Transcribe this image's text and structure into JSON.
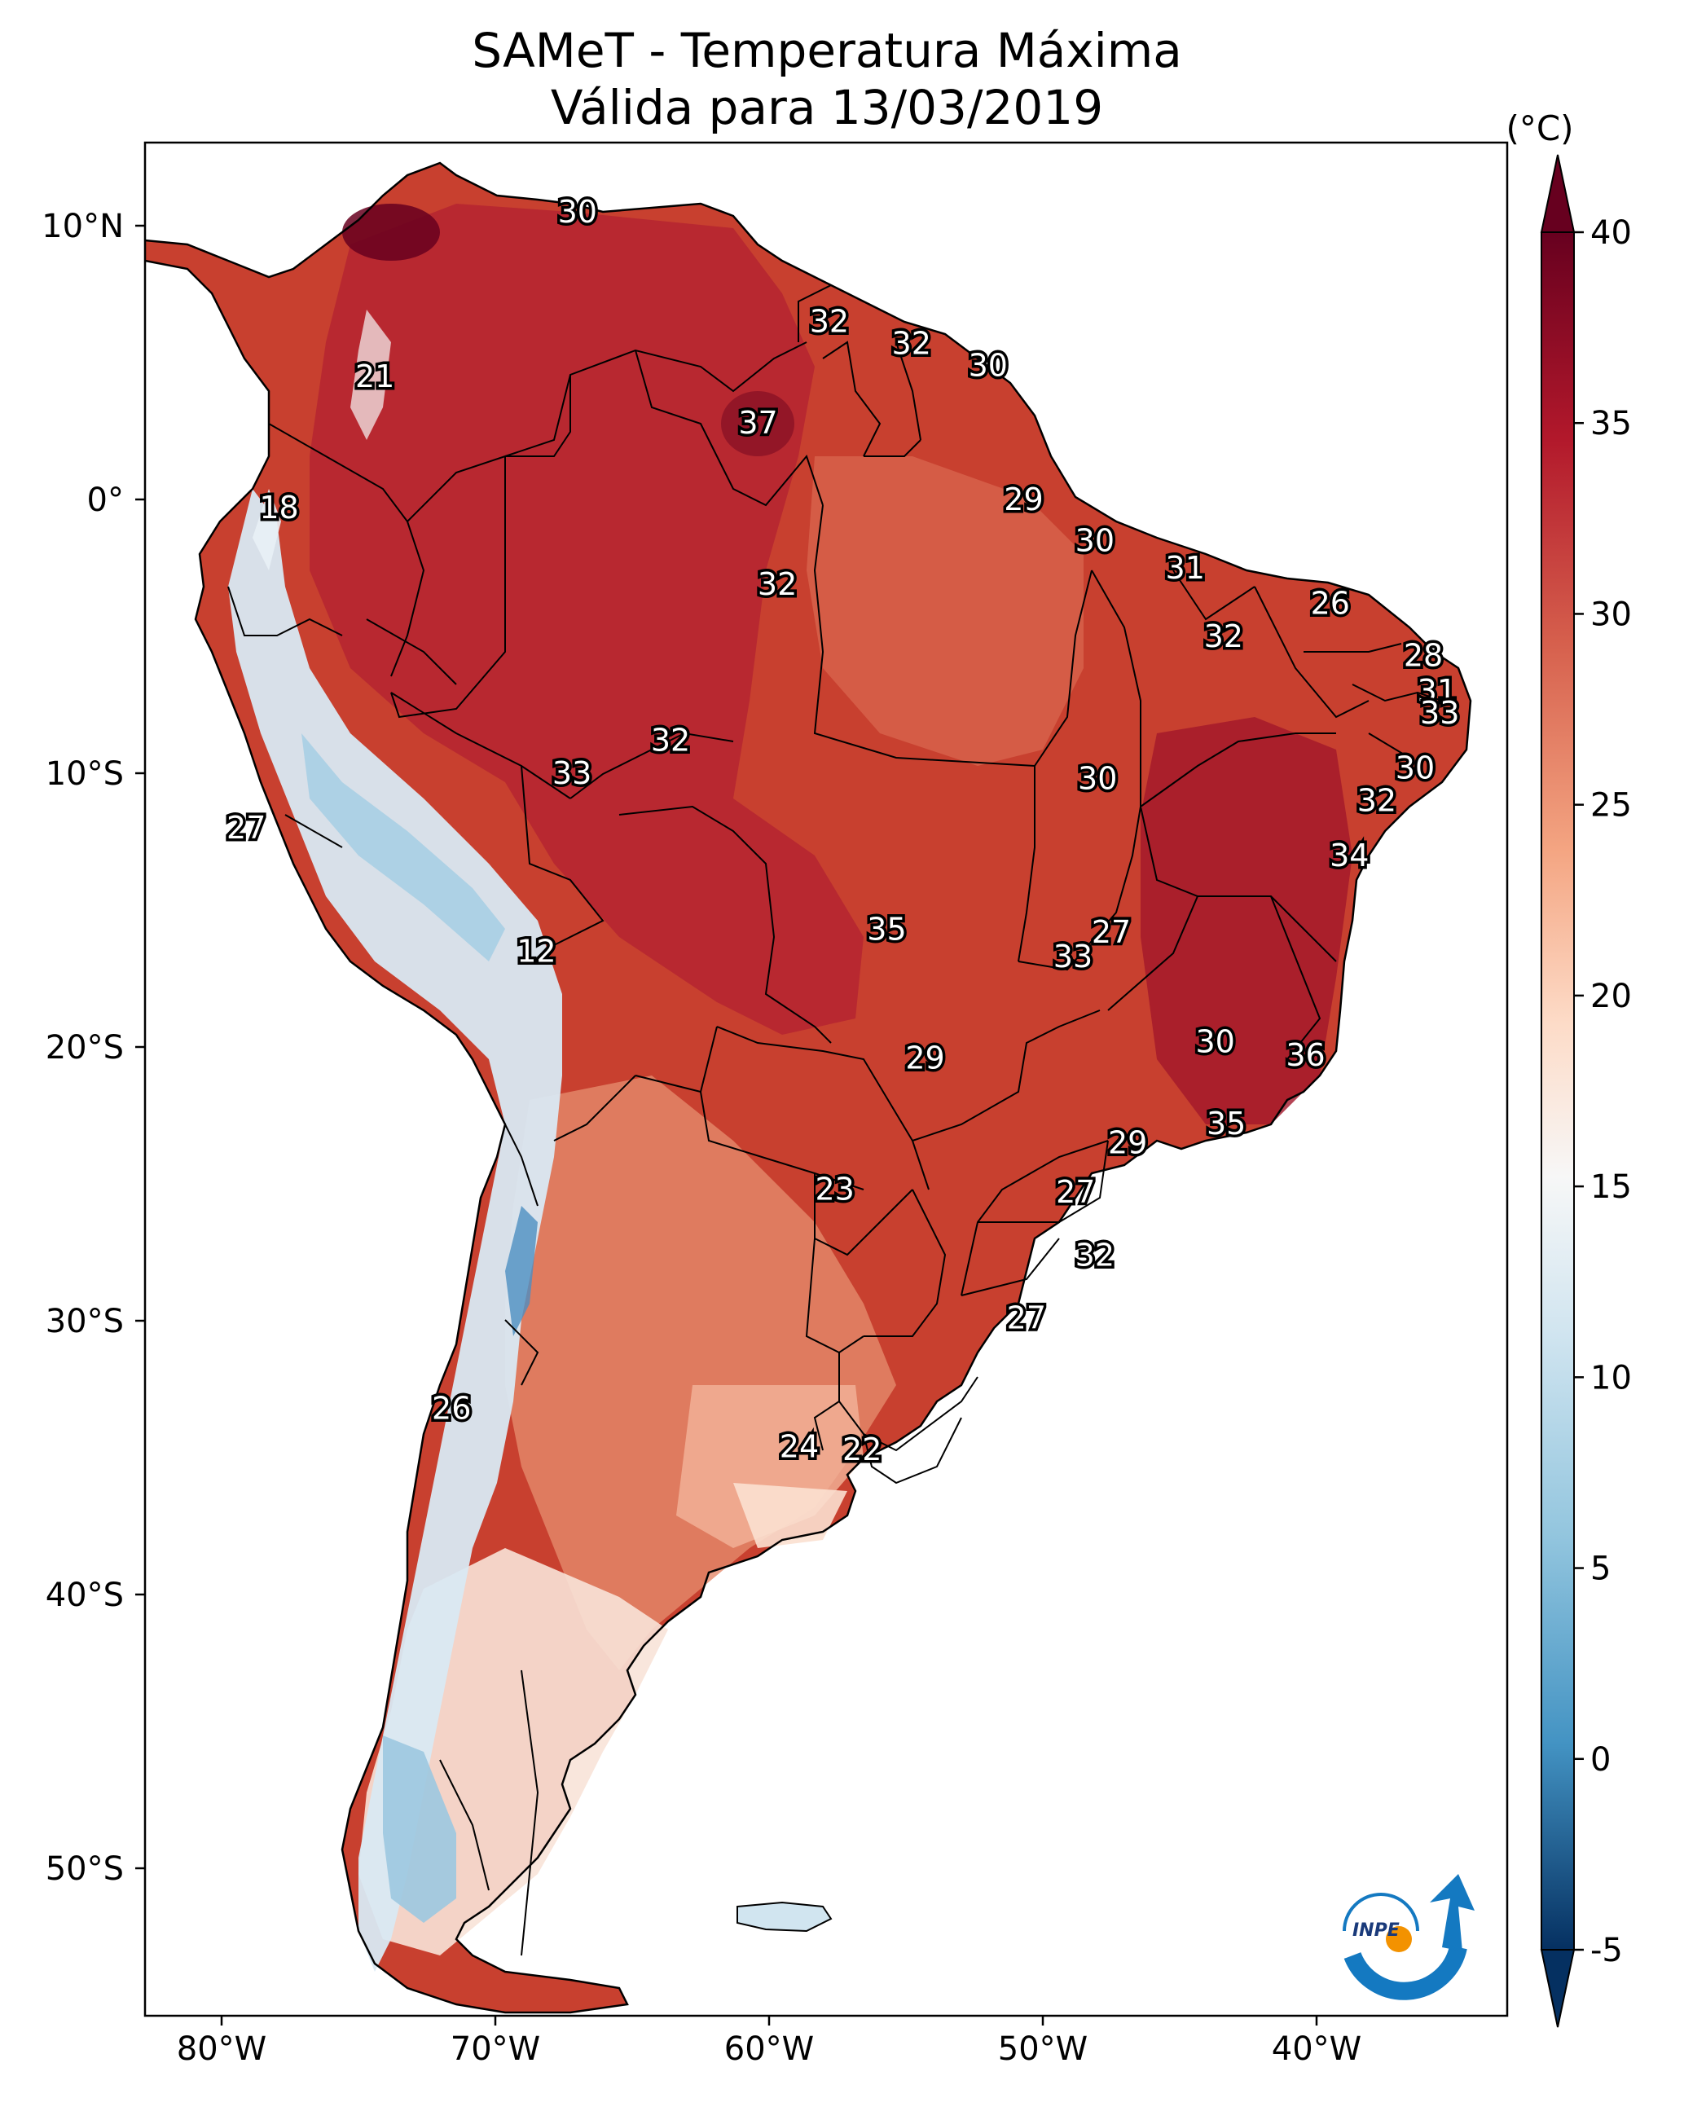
{
  "title": {
    "line1": "SAMeT - Temperatura Máxima",
    "line2": "Válida para 13/03/2019"
  },
  "colorbar": {
    "unit": "(°C)",
    "ticks": [
      "40",
      "35",
      "30",
      "25",
      "20",
      "15",
      "10",
      "5",
      "0",
      "-5"
    ],
    "min": -5,
    "max": 40
  },
  "axes": {
    "lat_ticks": [
      "10°N",
      "0°",
      "10°S",
      "20°S",
      "30°S",
      "40°S",
      "50°S"
    ],
    "lon_ticks": [
      "80°W",
      "70°W",
      "60°W",
      "50°W",
      "40°W"
    ]
  },
  "logo": {
    "text": "INPE"
  },
  "colors": {
    "hot": "#67001f",
    "warm": "#b2182b",
    "mild": "#d6604d",
    "light": "#f4a582",
    "pale": "#fddbc7",
    "neutral": "#f7f7f7",
    "cool": "#d1e5f0",
    "cold": "#92c5de",
    "colder": "#4393c3",
    "coldest": "#053061"
  },
  "point_values": [
    {
      "v": "30",
      "lon": -67.0,
      "lat": 10.5
    },
    {
      "v": "21",
      "lon": -74.4,
      "lat": 4.5
    },
    {
      "v": "32",
      "lon": -57.8,
      "lat": 6.5
    },
    {
      "v": "32",
      "lon": -54.8,
      "lat": 5.7
    },
    {
      "v": "30",
      "lon": -52.0,
      "lat": 4.9
    },
    {
      "v": "37",
      "lon": -60.4,
      "lat": 2.8
    },
    {
      "v": "29",
      "lon": -50.7,
      "lat": 0.0
    },
    {
      "v": "18",
      "lon": -77.9,
      "lat": -0.3
    },
    {
      "v": "30",
      "lon": -48.1,
      "lat": -1.5
    },
    {
      "v": "31",
      "lon": -44.8,
      "lat": -2.5
    },
    {
      "v": "32",
      "lon": -59.7,
      "lat": -3.1
    },
    {
      "v": "26",
      "lon": -39.5,
      "lat": -3.8
    },
    {
      "v": "32",
      "lon": -43.4,
      "lat": -5.0
    },
    {
      "v": "28",
      "lon": -36.1,
      "lat": -5.7
    },
    {
      "v": "31",
      "lon": -35.6,
      "lat": -7.0
    },
    {
      "v": "33",
      "lon": -35.5,
      "lat": -7.8
    },
    {
      "v": "32",
      "lon": -63.6,
      "lat": -8.8
    },
    {
      "v": "30",
      "lon": -36.4,
      "lat": -9.8
    },
    {
      "v": "33",
      "lon": -67.2,
      "lat": -10.0
    },
    {
      "v": "30",
      "lon": -48.0,
      "lat": -10.2
    },
    {
      "v": "32",
      "lon": -37.8,
      "lat": -11.0
    },
    {
      "v": "27",
      "lon": -79.1,
      "lat": -12.0
    },
    {
      "v": "34",
      "lon": -38.8,
      "lat": -13.0
    },
    {
      "v": "35",
      "lon": -55.7,
      "lat": -15.7
    },
    {
      "v": "27",
      "lon": -47.5,
      "lat": -15.8
    },
    {
      "v": "12",
      "lon": -68.5,
      "lat": -16.5
    },
    {
      "v": "33",
      "lon": -48.9,
      "lat": -16.7
    },
    {
      "v": "30",
      "lon": -43.7,
      "lat": -19.8
    },
    {
      "v": "29",
      "lon": -54.3,
      "lat": -20.4
    },
    {
      "v": "36",
      "lon": -40.4,
      "lat": -20.3
    },
    {
      "v": "35",
      "lon": -43.3,
      "lat": -22.8
    },
    {
      "v": "29",
      "lon": -46.9,
      "lat": -23.5
    },
    {
      "v": "23",
      "lon": -57.6,
      "lat": -25.2
    },
    {
      "v": "27",
      "lon": -48.8,
      "lat": -25.3
    },
    {
      "v": "32",
      "lon": -48.1,
      "lat": -27.6
    },
    {
      "v": "27",
      "lon": -50.6,
      "lat": -29.9
    },
    {
      "v": "26",
      "lon": -71.6,
      "lat": -33.2
    },
    {
      "v": "24",
      "lon": -58.9,
      "lat": -34.6
    },
    {
      "v": "22",
      "lon": -56.6,
      "lat": -34.7
    }
  ]
}
